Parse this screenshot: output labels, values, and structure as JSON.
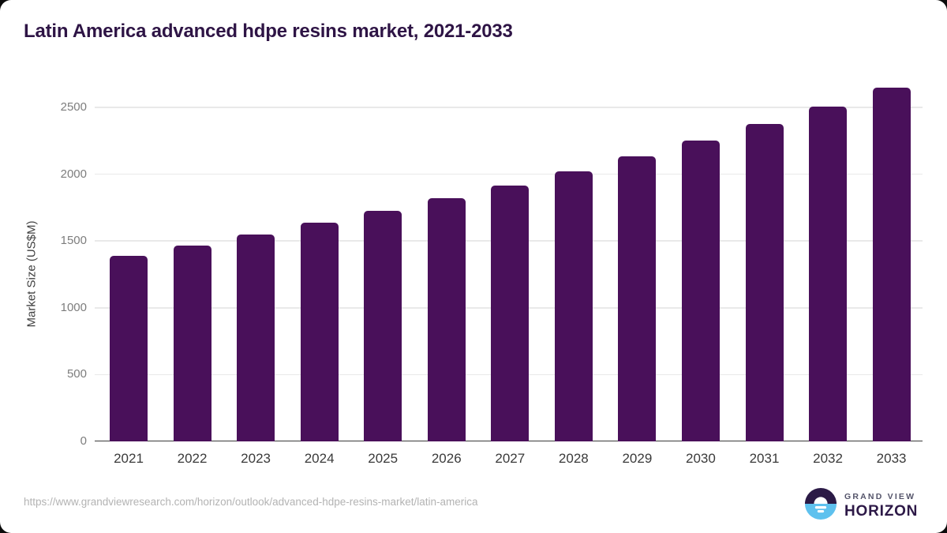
{
  "page": {
    "title": "Latin America advanced hdpe resins market, 2021-2033",
    "source_url": "https://www.grandviewresearch.com/horizon/outlook/advanced-hdpe-resins-market/latin-america",
    "brand": {
      "name_top": "GRAND VIEW",
      "name_bottom": "HORIZON",
      "logo_icon": "horizon-sun-circle-icon",
      "logo_colors": {
        "top_half": "#2b1a46",
        "bottom_half": "#5ec1ee",
        "mark": "#ffffff"
      }
    }
  },
  "chart_data": {
    "type": "bar",
    "title": "Latin America advanced hdpe resins market, 2021-2033",
    "categories": [
      "2021",
      "2022",
      "2023",
      "2024",
      "2025",
      "2026",
      "2027",
      "2028",
      "2029",
      "2030",
      "2031",
      "2032",
      "2033"
    ],
    "values": [
      1390,
      1468,
      1550,
      1636,
      1725,
      1819,
      1916,
      2019,
      2131,
      2252,
      2375,
      2506,
      2645
    ],
    "xlabel": "",
    "ylabel": "Market Size (US$M)",
    "yticks": [
      0,
      500,
      1000,
      1500,
      2000,
      2500
    ],
    "ylim": [
      0,
      2700
    ],
    "unit": "US$M",
    "grid": true,
    "legend_position": "none",
    "bar_color": "#49105a",
    "gridline_color": "#e9e9e9",
    "axis_line_color": "#3a3a3a",
    "tick_label_color": "#7d7d7d",
    "category_label_color": "#3a3a3a",
    "title_color": "#2e1445"
  }
}
